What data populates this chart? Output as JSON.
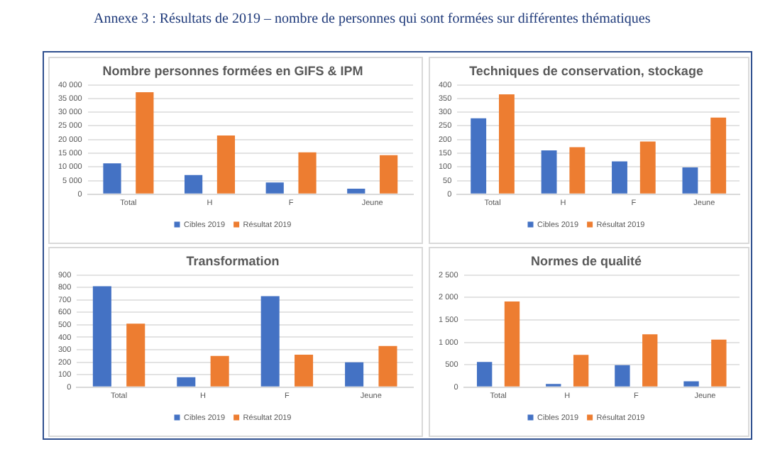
{
  "chart_data": [
    {
      "type": "bar",
      "title": "Nombre personnes formées en GIFS & IPM",
      "annotations": [
        "Annexe 3 : Résultats de 2019 – nombre de personnes qui sont formées sur différentes thématiques"
      ],
      "categories": [
        "Total",
        "H",
        "F",
        "Jeune"
      ],
      "series": [
        {
          "name": "Cibles 2019",
          "color": "#4472c4",
          "values": [
            11300,
            7000,
            4300,
            2000
          ]
        },
        {
          "name": "Résultat 2019",
          "color": "#ed7d31",
          "values": [
            37300,
            21500,
            15300,
            14300
          ]
        }
      ],
      "ylim": [
        0,
        40000
      ],
      "yticks": [
        {
          "value": 0,
          "label": "0"
        },
        {
          "value": 5000,
          "label": "5 000"
        },
        {
          "value": 10000,
          "label": "10 000"
        },
        {
          "value": 15000,
          "label": "15 000"
        },
        {
          "value": 20000,
          "label": "20 000"
        },
        {
          "value": 25000,
          "label": "25 000"
        },
        {
          "value": 30000,
          "label": "30 000"
        },
        {
          "value": 35000,
          "label": "35 000"
        },
        {
          "value": 40000,
          "label": "40 000"
        }
      ],
      "grid": "y",
      "legend": "bottom"
    },
    {
      "type": "bar",
      "title": "Techniques de conservation, stockage",
      "categories": [
        "Total",
        "H",
        "F",
        "Jeune"
      ],
      "series": [
        {
          "name": "Cibles 2019",
          "color": "#4472c4",
          "values": [
            278,
            160,
            120,
            98
          ]
        },
        {
          "name": "Résultat 2019",
          "color": "#ed7d31",
          "values": [
            365,
            172,
            193,
            280
          ]
        }
      ],
      "ylim": [
        0,
        400
      ],
      "yticks": [
        0,
        50,
        100,
        150,
        200,
        250,
        300,
        350,
        400
      ],
      "grid": "y",
      "legend": "bottom"
    },
    {
      "type": "bar",
      "title": "Transformation",
      "categories": [
        "Total",
        "H",
        "F",
        "Jeune"
      ],
      "series": [
        {
          "name": "Cibles 2019",
          "color": "#4472c4",
          "values": [
            810,
            80,
            730,
            200
          ]
        },
        {
          "name": "Résultat 2019",
          "color": "#ed7d31",
          "values": [
            510,
            250,
            260,
            330
          ]
        }
      ],
      "ylim": [
        0,
        900
      ],
      "yticks": [
        0,
        100,
        200,
        300,
        400,
        500,
        600,
        700,
        800,
        900
      ],
      "grid": "y",
      "legend": "bottom"
    },
    {
      "type": "bar",
      "title": "Normes de qualité",
      "categories": [
        "Total",
        "H",
        "F",
        "Jeune"
      ],
      "series": [
        {
          "name": "Cibles 2019",
          "color": "#4472c4",
          "values": [
            560,
            70,
            490,
            130
          ]
        },
        {
          "name": "Résultat 2019",
          "color": "#ed7d31",
          "values": [
            1910,
            720,
            1180,
            1060
          ]
        }
      ],
      "ylim": [
        0,
        2500
      ],
      "yticks": [
        0,
        500,
        {
          "value": 1000,
          "label": "1 000"
        },
        {
          "value": 1500,
          "label": "1 500"
        },
        {
          "value": 2000,
          "label": "2 000"
        },
        {
          "value": 2500,
          "label": "2 500"
        }
      ],
      "grid": "y",
      "legend": "bottom"
    }
  ]
}
